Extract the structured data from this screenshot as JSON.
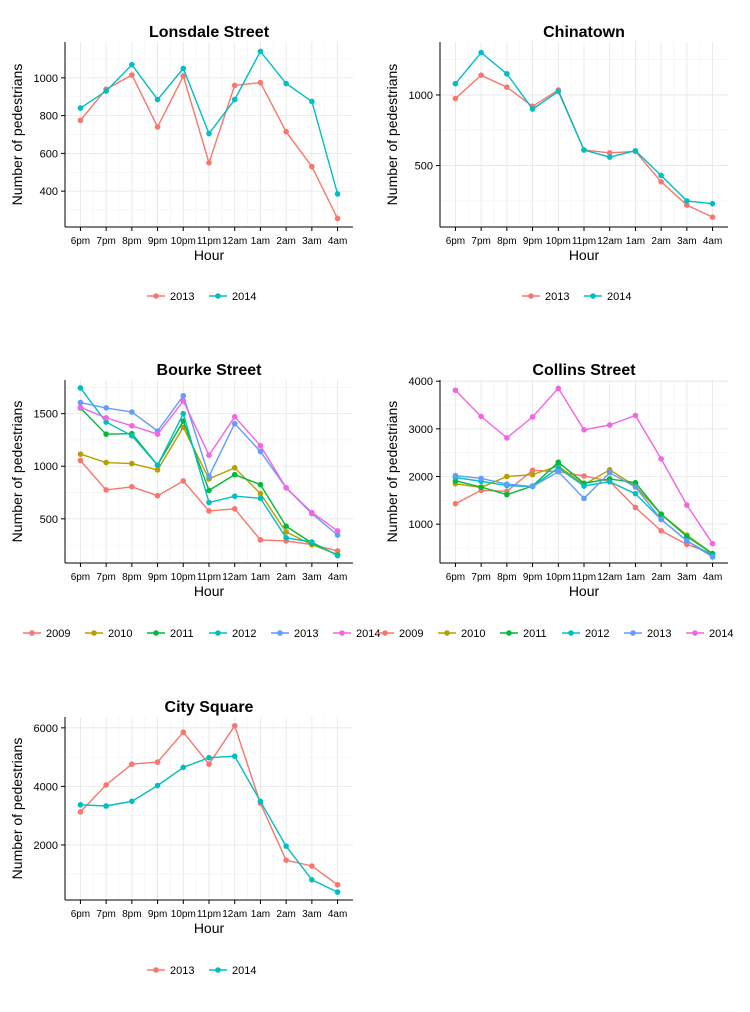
{
  "chart_data": [
    {
      "type": "line",
      "title": "Lonsdale Street",
      "xlabel": "Hour",
      "ylabel": "Number of pedestrians",
      "categories": [
        "6pm",
        "7pm",
        "8pm",
        "9pm",
        "10pm",
        "11pm",
        "12am",
        "1am",
        "2am",
        "3am",
        "4am"
      ],
      "ylim": [
        210,
        1190
      ],
      "yticks": [
        400,
        600,
        800,
        1000
      ],
      "grid": true,
      "legend": "bottom",
      "series": [
        {
          "name": "2013",
          "color": "#F8766D",
          "values": [
            775,
            940,
            1015,
            740,
            1010,
            550,
            960,
            975,
            715,
            530,
            255
          ]
        },
        {
          "name": "2014",
          "color": "#00BFC4",
          "values": [
            840,
            930,
            1070,
            885,
            1050,
            705,
            885,
            1140,
            970,
            875,
            385
          ]
        }
      ]
    },
    {
      "type": "line",
      "title": "Chinatown",
      "xlabel": "Hour",
      "ylabel": "Number of pedestrians",
      "categories": [
        "6pm",
        "7pm",
        "8pm",
        "9pm",
        "10pm",
        "11pm",
        "12am",
        "1am",
        "2am",
        "3am",
        "4am"
      ],
      "ylim": [
        65,
        1375
      ],
      "yticks": [
        500,
        1000
      ],
      "grid": true,
      "legend": "bottom",
      "series": [
        {
          "name": "2013",
          "color": "#F8766D",
          "values": [
            975,
            1140,
            1055,
            920,
            1035,
            610,
            590,
            600,
            385,
            220,
            135
          ]
        },
        {
          "name": "2014",
          "color": "#00BFC4",
          "values": [
            1080,
            1300,
            1150,
            900,
            1025,
            610,
            560,
            605,
            430,
            250,
            230
          ]
        }
      ]
    },
    {
      "type": "line",
      "title": "Bourke Street",
      "xlabel": "Hour",
      "ylabel": "Number of pedestrians",
      "categories": [
        "6pm",
        "7pm",
        "8pm",
        "9pm",
        "10pm",
        "11pm",
        "12am",
        "1am",
        "2am",
        "3am",
        "4am"
      ],
      "ylim": [
        80,
        1820
      ],
      "yticks": [
        500,
        1000,
        1500
      ],
      "grid": true,
      "legend": "bottom",
      "series": [
        {
          "name": "2009",
          "color": "#F8766D",
          "values": [
            1055,
            775,
            805,
            720,
            860,
            575,
            595,
            300,
            290,
            255,
            195
          ]
        },
        {
          "name": "2010",
          "color": "#B79F00",
          "values": [
            1115,
            1035,
            1025,
            965,
            1370,
            880,
            985,
            740,
            375,
            255,
            160
          ]
        },
        {
          "name": "2011",
          "color": "#00BA38",
          "values": [
            1555,
            1305,
            1310,
            1010,
            1430,
            770,
            920,
            825,
            430,
            270,
            155
          ]
        },
        {
          "name": "2012",
          "color": "#00BFC4",
          "values": [
            1745,
            1420,
            1290,
            1010,
            1500,
            655,
            715,
            695,
            320,
            280,
            150
          ]
        },
        {
          "name": "2013",
          "color": "#619CFF",
          "values": [
            1605,
            1555,
            1515,
            1335,
            1670,
            905,
            1405,
            1140,
            795,
            550,
            345
          ]
        },
        {
          "name": "2014",
          "color": "#F564E3",
          "values": [
            1560,
            1460,
            1385,
            1305,
            1620,
            1105,
            1470,
            1195,
            795,
            560,
            385
          ]
        }
      ]
    },
    {
      "type": "line",
      "title": "Collins Street",
      "xlabel": "Hour",
      "ylabel": "Number of pedestrians",
      "categories": [
        "6pm",
        "7pm",
        "8pm",
        "9pm",
        "10pm",
        "11pm",
        "12am",
        "1am",
        "2am",
        "3am",
        "4am"
      ],
      "ylim": [
        185,
        4025
      ],
      "yticks": [
        1000,
        2000,
        3000,
        4000
      ],
      "grid": true,
      "legend": "bottom",
      "series": [
        {
          "name": "2009",
          "color": "#F8766D",
          "values": [
            1430,
            1710,
            1690,
            2130,
            2100,
            2010,
            1900,
            1350,
            860,
            575,
            380
          ]
        },
        {
          "name": "2010",
          "color": "#B79F00",
          "values": [
            1850,
            1770,
            2000,
            2040,
            2220,
            1830,
            2140,
            1800,
            1210,
            770,
            380
          ]
        },
        {
          "name": "2011",
          "color": "#00BA38",
          "values": [
            1910,
            1780,
            1620,
            1800,
            2300,
            1860,
            1950,
            1870,
            1210,
            740,
            380
          ]
        },
        {
          "name": "2012",
          "color": "#00BFC4",
          "values": [
            1980,
            1900,
            1810,
            1790,
            2180,
            1800,
            1890,
            1640,
            1100,
            650,
            340
          ]
        },
        {
          "name": "2013",
          "color": "#619CFF",
          "values": [
            2020,
            1960,
            1840,
            1790,
            2100,
            1540,
            2080,
            1780,
            1100,
            650,
            310
          ]
        },
        {
          "name": "2014",
          "color": "#F564E3",
          "values": [
            3810,
            3260,
            2810,
            3250,
            3850,
            2980,
            3080,
            3280,
            2370,
            1400,
            590
          ]
        }
      ]
    },
    {
      "type": "line",
      "title": "City Square",
      "xlabel": "Hour",
      "ylabel": "Number of pedestrians",
      "categories": [
        "6pm",
        "7pm",
        "8pm",
        "9pm",
        "10pm",
        "11pm",
        "12am",
        "1am",
        "2am",
        "3am",
        "4am"
      ],
      "ylim": [
        120,
        6370
      ],
      "yticks": [
        2000,
        4000,
        6000
      ],
      "grid": true,
      "legend": "bottom",
      "series": [
        {
          "name": "2013",
          "color": "#F8766D",
          "values": [
            3130,
            4050,
            4760,
            4830,
            5850,
            4760,
            6070,
            3420,
            1480,
            1280,
            640
          ]
        },
        {
          "name": "2014",
          "color": "#00BFC4",
          "values": [
            3370,
            3330,
            3490,
            4030,
            4650,
            4980,
            5030,
            3490,
            1960,
            810,
            390
          ]
        }
      ]
    }
  ]
}
